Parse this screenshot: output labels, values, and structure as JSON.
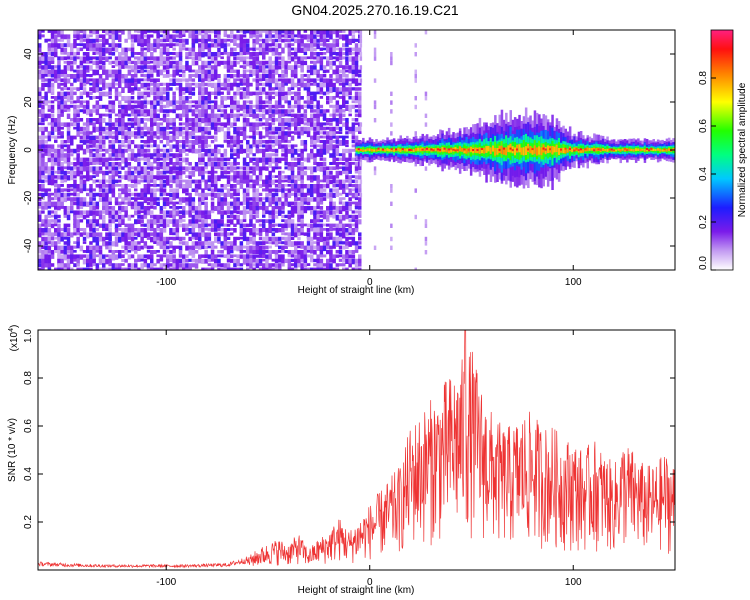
{
  "title": "GN04.2025.270.16.19.C21",
  "chart_data": [
    {
      "type": "heatmap",
      "title": "GN04.2025.270.16.19.C21",
      "xlabel": "Height of straight line (km)",
      "ylabel": "Frequency (Hz)",
      "xlim": [
        -163,
        150
      ],
      "ylim": [
        -50,
        50
      ],
      "xticks": [
        -100,
        0,
        100
      ],
      "yticks": [
        -40,
        -20,
        0,
        20,
        40
      ],
      "noise_region_x": [
        -163,
        -5
      ],
      "signal_region_x": [
        -7,
        150
      ],
      "signal_band_center_hz": 0,
      "signal_band_halfwidth_hz": [
        [
          -7,
          2
        ],
        [
          10,
          2
        ],
        [
          30,
          3
        ],
        [
          50,
          4
        ],
        [
          60,
          6
        ],
        [
          75,
          7
        ],
        [
          90,
          6
        ],
        [
          100,
          3
        ],
        [
          120,
          2
        ],
        [
          140,
          2
        ],
        [
          150,
          2
        ]
      ],
      "colorbar": {
        "label": "Normalized spectral amplitude",
        "min": 0,
        "max": 1,
        "ticks": [
          "0.0",
          "0.2",
          "0.4",
          "0.6",
          "0.8"
        ],
        "colormap": [
          "#ffffff",
          "#8a2be2",
          "#0000ff",
          "#00ffff",
          "#00ff00",
          "#ffff00",
          "#ff8000",
          "#ff0000",
          "#ff00aa"
        ]
      }
    },
    {
      "type": "line",
      "xlabel": "Height of straight line (km)",
      "ylabel": "SNR (10 * v/v)",
      "yscale_label": "(x10",
      "yscale_exp": "4",
      "xlim": [
        -163,
        150
      ],
      "ylim": [
        0,
        1.0
      ],
      "xticks": [
        -100,
        0,
        100
      ],
      "yticks": [
        "0.2",
        "0.4",
        "0.6",
        "0.8",
        "1.0"
      ],
      "line_color": "#ee3333",
      "series": [
        {
          "x": [
            -163,
            -150,
            -130,
            -110,
            -90,
            -70,
            -60,
            -55,
            -50,
            -45,
            -40,
            -35,
            -30,
            -25,
            -20,
            -15,
            -10,
            -5,
            0,
            5,
            10,
            15,
            20,
            25,
            30,
            35,
            40,
            45,
            50,
            55,
            60,
            65,
            70,
            75,
            80,
            85,
            90,
            95,
            100,
            105,
            110,
            115,
            120,
            125,
            130,
            135,
            140,
            145,
            150
          ],
          "values": [
            0.03,
            0.025,
            0.02,
            0.02,
            0.02,
            0.025,
            0.05,
            0.08,
            0.1,
            0.12,
            0.1,
            0.14,
            0.08,
            0.12,
            0.15,
            0.2,
            0.15,
            0.2,
            0.25,
            0.3,
            0.35,
            0.4,
            0.55,
            0.6,
            0.65,
            0.7,
            0.75,
            0.8,
            0.85,
            0.7,
            0.6,
            0.55,
            0.55,
            0.6,
            0.6,
            0.55,
            0.55,
            0.5,
            0.5,
            0.45,
            0.5,
            0.45,
            0.4,
            0.5,
            0.45,
            0.4,
            0.4,
            0.45,
            0.4
          ],
          "peak": {
            "x": 47,
            "value": 1.0
          }
        }
      ]
    }
  ]
}
